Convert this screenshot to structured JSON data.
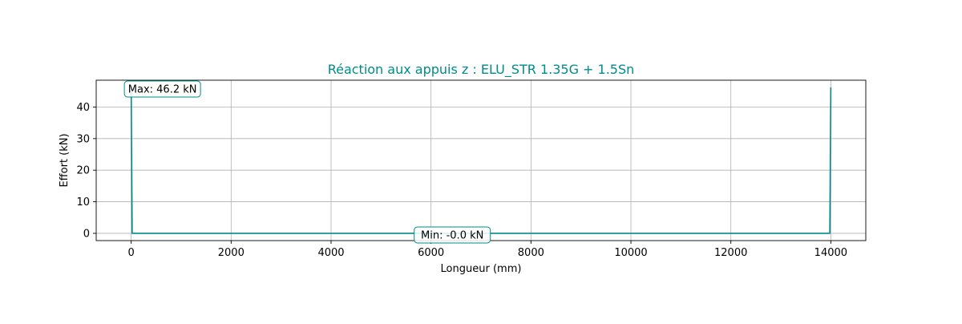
{
  "colors": {
    "line": "#008b8b",
    "title": "#008b8b",
    "grid": "#b0b0b0",
    "axis": "#000000",
    "annotation_border": "#008b8b"
  },
  "chart_data": {
    "type": "line",
    "title": "Réaction aux appuis z : ELU_STR 1.35G + 1.5Sn",
    "xlabel": "Longueur (mm)",
    "ylabel": "Effort (kN)",
    "xlim": [
      -700,
      14700
    ],
    "ylim": [
      -2.3,
      48.5
    ],
    "xticks": [
      0,
      2000,
      4000,
      6000,
      8000,
      10000,
      12000,
      14000
    ],
    "yticks": [
      0,
      10,
      20,
      30,
      40
    ],
    "grid": true,
    "series": [
      {
        "x": [
          0,
          20,
          13980,
          14000
        ],
        "y": [
          46.2,
          0,
          0,
          46.2
        ]
      }
    ],
    "annotations": [
      {
        "text": "Max: 46.2 kN",
        "x": 0,
        "y": 46.2
      },
      {
        "text": "Min: -0.0 kN",
        "x": 5800,
        "y": 0
      }
    ]
  }
}
